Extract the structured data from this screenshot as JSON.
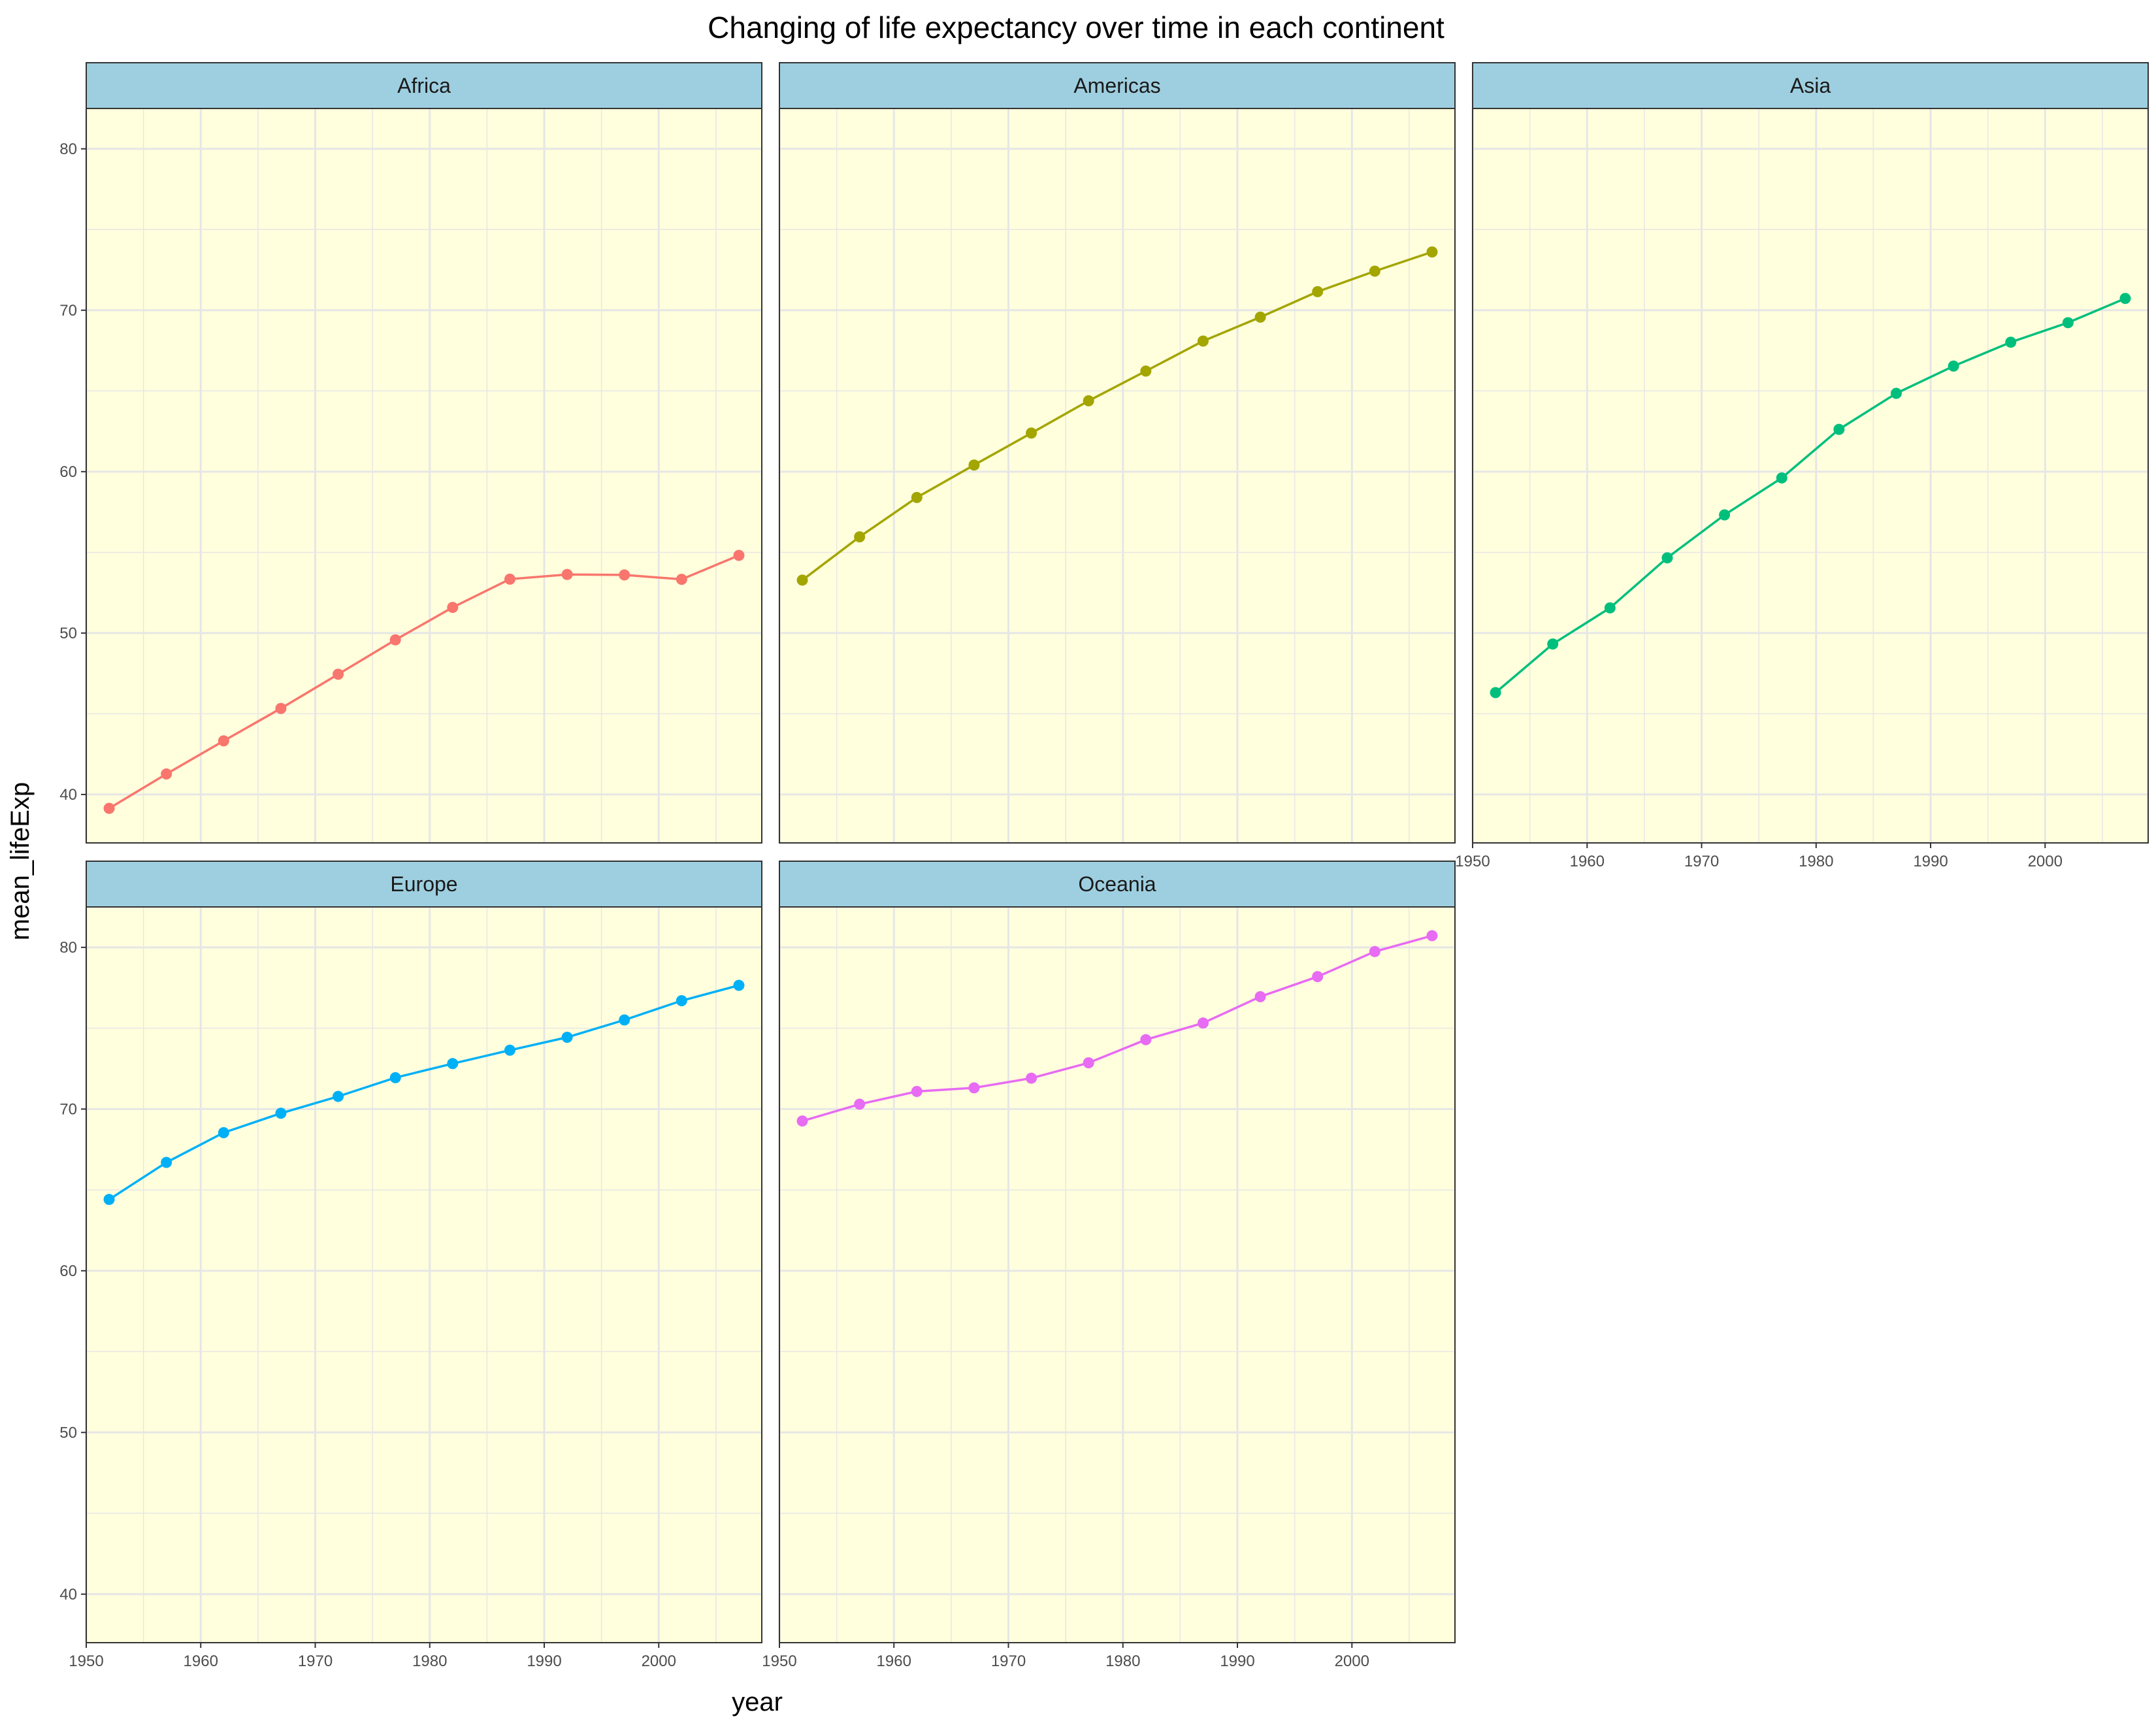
{
  "chart_data": {
    "type": "line",
    "title": "Changing of life expectancy over time in each continent",
    "xlabel": "year",
    "ylabel": "mean_lifeExp",
    "x": [
      1952,
      1957,
      1962,
      1967,
      1972,
      1977,
      1982,
      1987,
      1992,
      1997,
      2002,
      2007
    ],
    "xlim": [
      1950,
      2009
    ],
    "ylim": [
      37,
      82.5
    ],
    "x_ticks": [
      1950,
      1960,
      1970,
      1980,
      1990,
      2000
    ],
    "y_ticks": [
      40,
      50,
      60,
      70,
      80
    ],
    "grid": true,
    "panel_background": "#ffffdd",
    "strip_background": "#9ecfe0",
    "grid_color": "#e6e6e6",
    "series": [
      {
        "name": "Africa",
        "color": "#f8766d",
        "values": [
          39.14,
          41.27,
          43.32,
          45.33,
          47.45,
          49.58,
          51.59,
          53.34,
          53.63,
          53.6,
          53.33,
          54.81
        ]
      },
      {
        "name": "Americas",
        "color": "#a3a500",
        "values": [
          53.28,
          55.96,
          58.4,
          60.41,
          62.39,
          64.39,
          66.23,
          68.09,
          69.57,
          71.15,
          72.42,
          73.61
        ]
      },
      {
        "name": "Asia",
        "color": "#00bf7d",
        "values": [
          46.31,
          49.32,
          51.56,
          54.66,
          57.32,
          59.61,
          62.62,
          64.85,
          66.54,
          68.02,
          69.23,
          70.73
        ]
      },
      {
        "name": "Europe",
        "color": "#00b0f6",
        "values": [
          64.41,
          66.7,
          68.54,
          69.74,
          70.78,
          71.94,
          72.81,
          73.64,
          74.44,
          75.51,
          76.7,
          77.65
        ]
      },
      {
        "name": "Oceania",
        "color": "#e76bf3",
        "values": [
          69.26,
          70.3,
          71.09,
          71.31,
          71.91,
          72.86,
          74.29,
          75.32,
          76.95,
          78.19,
          79.74,
          80.72
        ]
      }
    ]
  }
}
